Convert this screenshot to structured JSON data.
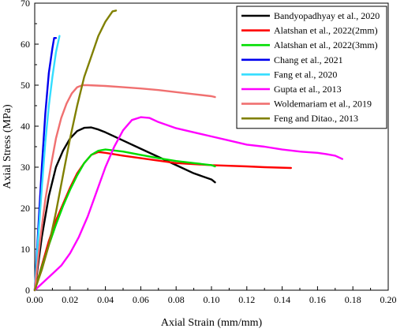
{
  "chart_data": {
    "type": "line",
    "title": "",
    "xlabel": "Axial Strain (mm/mm)",
    "ylabel": "Axial Stress (MPa)",
    "xlim": [
      0,
      0.2
    ],
    "ylim": [
      0,
      70
    ],
    "xticks": [
      "0.00",
      "0.02",
      "0.04",
      "0.06",
      "0.08",
      "0.10",
      "0.12",
      "0.14",
      "0.16",
      "0.18",
      "0.20"
    ],
    "yticks": [
      "0",
      "10",
      "20",
      "30",
      "40",
      "50",
      "60",
      "70"
    ],
    "grid": false,
    "legend_position": "top-right",
    "series": [
      {
        "name": "Bandyopadhyay et al., 2020",
        "color": "#000000",
        "x": [
          0,
          0.004,
          0.008,
          0.012,
          0.016,
          0.02,
          0.024,
          0.028,
          0.032,
          0.036,
          0.04,
          0.05,
          0.06,
          0.07,
          0.08,
          0.09,
          0.1,
          0.102
        ],
        "y": [
          0,
          13,
          23,
          30,
          34,
          37,
          38.8,
          39.6,
          39.7,
          39.2,
          38.5,
          36.5,
          34.5,
          32.5,
          30.5,
          28.5,
          27,
          26.3
        ]
      },
      {
        "name": "Alatshan et al., 2022(2mm)",
        "color": "#ff0000",
        "x": [
          0,
          0.004,
          0.008,
          0.012,
          0.016,
          0.02,
          0.024,
          0.028,
          0.032,
          0.036,
          0.04,
          0.05,
          0.06,
          0.07,
          0.08,
          0.1,
          0.12,
          0.13,
          0.145
        ],
        "y": [
          0,
          6,
          12,
          17,
          21,
          25,
          28.5,
          31,
          33,
          33.7,
          33.5,
          32.8,
          32.2,
          31.6,
          31,
          30.5,
          30.2,
          30,
          29.8
        ]
      },
      {
        "name": "Alatshan et al., 2022(3mm)",
        "color": "#00dd00",
        "x": [
          0,
          0.004,
          0.008,
          0.012,
          0.016,
          0.02,
          0.024,
          0.028,
          0.032,
          0.036,
          0.04,
          0.05,
          0.06,
          0.07,
          0.08,
          0.09,
          0.1,
          0.102
        ],
        "y": [
          0,
          5.5,
          11,
          16,
          20.5,
          24.5,
          28,
          31,
          33,
          34,
          34.3,
          33.8,
          33,
          32.2,
          31.5,
          31,
          30.5,
          30.2
        ]
      },
      {
        "name": "Chang et al., 2021",
        "color": "#0000ee",
        "x": [
          0,
          0.002,
          0.004,
          0.006,
          0.008,
          0.01,
          0.011,
          0.012
        ],
        "y": [
          0,
          15,
          30,
          43,
          53,
          59,
          61.5,
          61.5
        ]
      },
      {
        "name": "Fang et al., 2020",
        "color": "#33ddff",
        "x": [
          0,
          0.002,
          0.004,
          0.006,
          0.008,
          0.01,
          0.012,
          0.014
        ],
        "y": [
          0,
          13,
          25,
          36,
          45,
          52,
          58,
          62
        ]
      },
      {
        "name": "Gupta et al., 2013",
        "color": "#ff00ff",
        "x": [
          0,
          0.005,
          0.01,
          0.015,
          0.02,
          0.025,
          0.03,
          0.035,
          0.04,
          0.045,
          0.05,
          0.055,
          0.06,
          0.065,
          0.07,
          0.08,
          0.09,
          0.1,
          0.11,
          0.12,
          0.13,
          0.14,
          0.15,
          0.16,
          0.165,
          0.17,
          0.174
        ],
        "y": [
          0,
          2,
          4,
          6,
          9,
          13,
          18,
          24,
          30,
          35,
          39,
          41.5,
          42.2,
          42,
          41,
          39.5,
          38.5,
          37.5,
          36.5,
          35.5,
          35,
          34.3,
          33.8,
          33.5,
          33.2,
          32.8,
          32
        ]
      },
      {
        "name": "Woldemariam et al., 2019",
        "color": "#f07070",
        "x": [
          0,
          0.003,
          0.006,
          0.009,
          0.012,
          0.015,
          0.018,
          0.021,
          0.024,
          0.027,
          0.03,
          0.04,
          0.05,
          0.06,
          0.07,
          0.08,
          0.09,
          0.1,
          0.102
        ],
        "y": [
          0,
          12,
          22,
          30,
          37,
          42,
          45.5,
          48,
          49.5,
          50,
          50,
          49.8,
          49.5,
          49.2,
          48.8,
          48.3,
          47.8,
          47.3,
          47.1
        ]
      },
      {
        "name": "Feng and Ditao., 2013",
        "color": "#808000",
        "x": [
          0,
          0.004,
          0.008,
          0.012,
          0.016,
          0.02,
          0.024,
          0.028,
          0.032,
          0.036,
          0.04,
          0.044,
          0.046
        ],
        "y": [
          0,
          5,
          11,
          19,
          28,
          37,
          45,
          52,
          57,
          62,
          65.5,
          68,
          68.2
        ]
      }
    ]
  }
}
